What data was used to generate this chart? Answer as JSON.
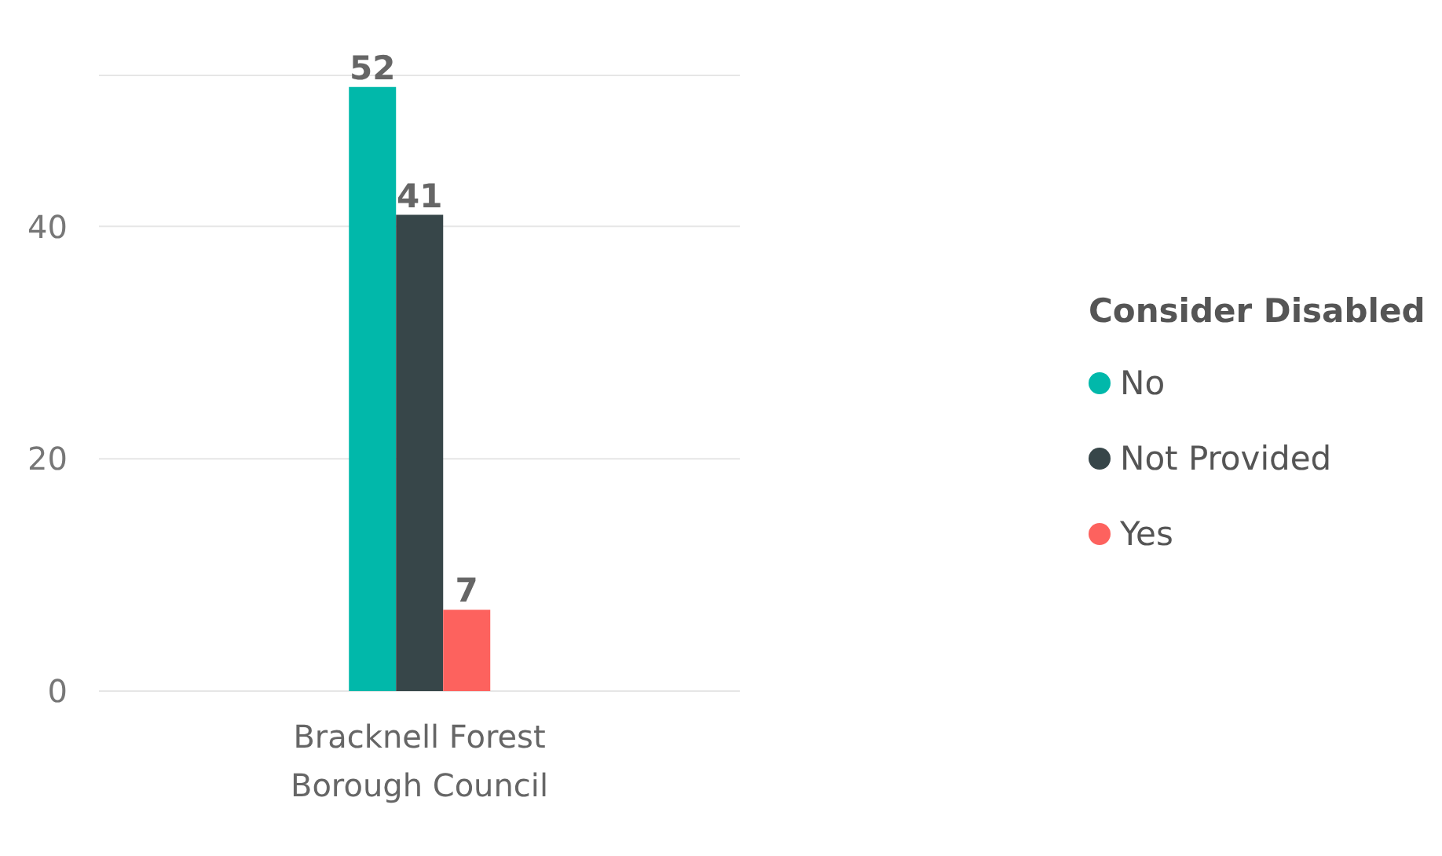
{
  "chart_data": {
    "type": "bar",
    "categories": [
      "Bracknell Forest Borough Council"
    ],
    "series": [
      {
        "name": "No",
        "color": "#01b8aa",
        "values": [
          52
        ]
      },
      {
        "name": "Not Provided",
        "color": "#374649",
        "values": [
          41
        ]
      },
      {
        "name": "Yes",
        "color": "#fd625e",
        "values": [
          7
        ]
      }
    ],
    "legend_title": "Consider Disabled",
    "legend": "right",
    "ylim": [
      0,
      53
    ],
    "yticks": [
      0,
      20,
      40
    ],
    "grid": "y",
    "data_labels": true
  }
}
